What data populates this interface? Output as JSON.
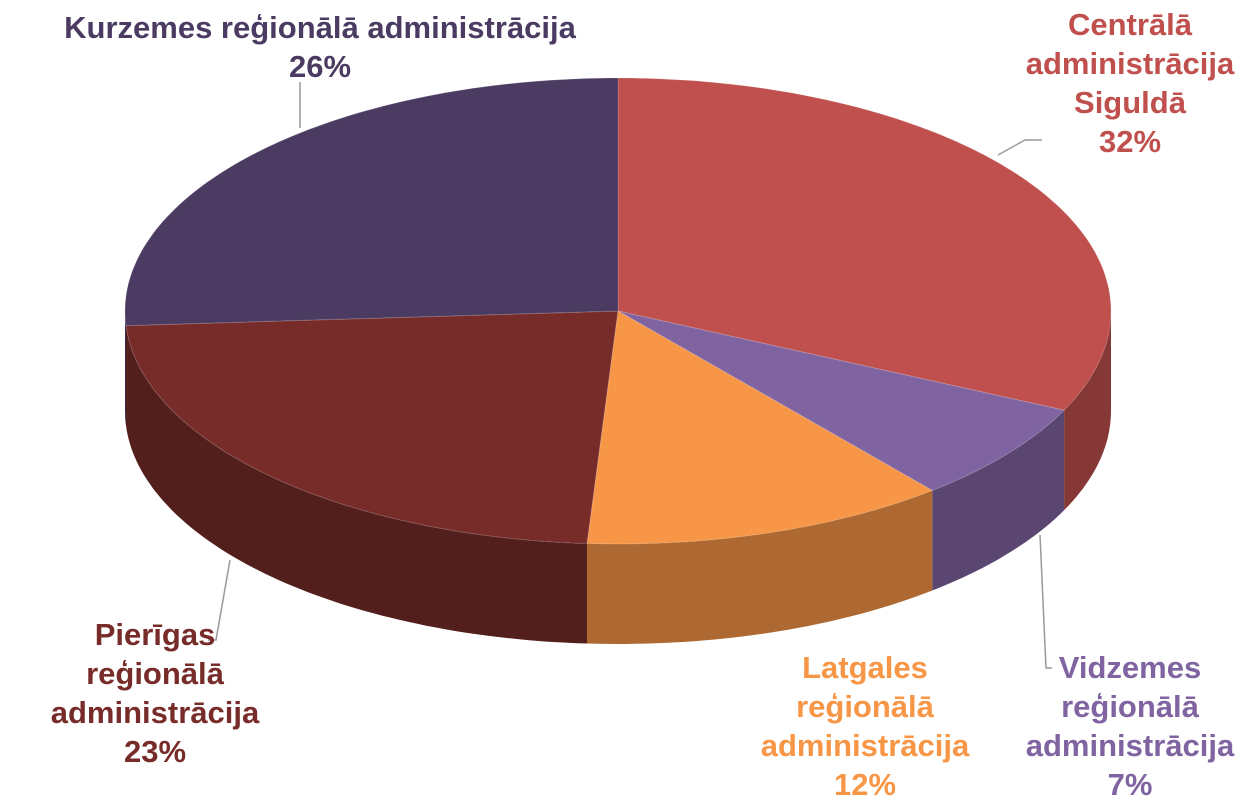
{
  "chart_data": {
    "type": "pie3d",
    "categories": [
      "Centrālā administrācija Siguldā",
      "Vidzemes reģionālā administrācija",
      "Latgales reģionālā administrācija",
      "Pierīgas reģionālā administrācija",
      "Kurzemes reģionālā administrācija"
    ],
    "values": [
      32,
      7,
      12,
      23,
      26
    ],
    "value_labels": [
      "32%",
      "7%",
      "12%",
      "23%",
      "26%"
    ],
    "colors": [
      "#c0504d",
      "#8064a2",
      "#f79646",
      "#772c2a",
      "#4b3b62"
    ]
  }
}
